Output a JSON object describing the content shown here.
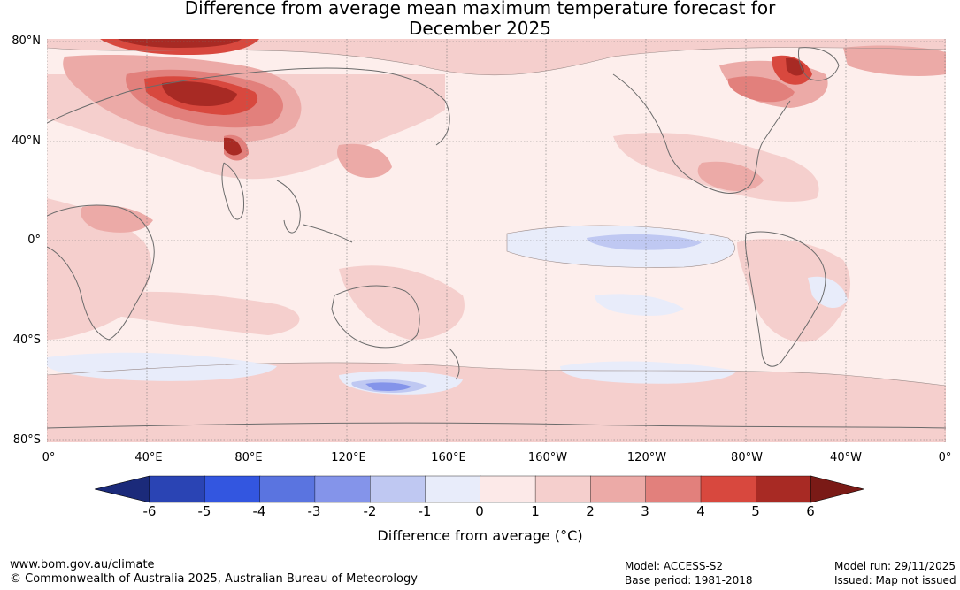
{
  "title": {
    "line1": "Difference from average mean maximum temperature forecast for",
    "line2": "December 2025"
  },
  "lat_labels": [
    "80°N",
    "40°N",
    "0°",
    "40°S",
    "80°S"
  ],
  "lon_labels": [
    "0°",
    "40°E",
    "80°E",
    "120°E",
    "160°E",
    "160°W",
    "120°W",
    "80°W",
    "40°W",
    "0°"
  ],
  "colorbar": {
    "ticks": [
      "-6",
      "-5",
      "-4",
      "-3",
      "-2",
      "-1",
      "0",
      "1",
      "2",
      "3",
      "4",
      "5",
      "6"
    ],
    "colors": [
      "#1b2a7a",
      "#2a44b4",
      "#3356e0",
      "#5a74e0",
      "#8494ea",
      "#bfc8f2",
      "#e8ecfa",
      "#fce9e8",
      "#f5cfcd",
      "#ecaaa7",
      "#e2807c",
      "#d8483e",
      "#a82a24",
      "#7a1a16"
    ],
    "label": "Difference from average (°C)"
  },
  "footer": {
    "url": "www.bom.gov.au/climate",
    "copyright": "© Commonwealth of Australia 2025, Australian Bureau of Meteorology",
    "model": "Model: ACCESS-S2",
    "base_period": "Base period: 1981-2018",
    "model_run": "Model run: 29/11/2025",
    "issued": "Issued: Map not issued"
  },
  "map_colors": {
    "background": "#fdeeec",
    "coast": "#6b6b6b",
    "grid": "#777777"
  }
}
